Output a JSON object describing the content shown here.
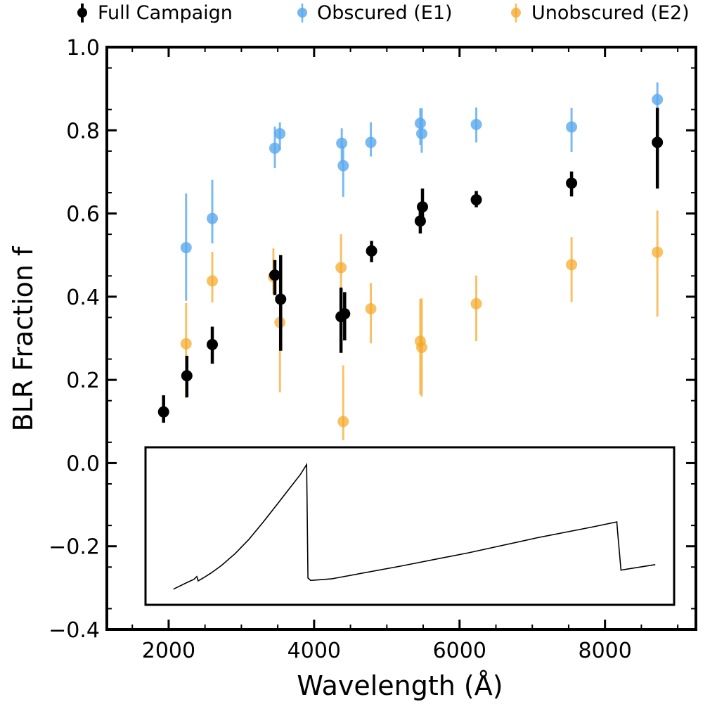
{
  "chart_data": {
    "type": "scatter",
    "xlabel": "Wavelength (Å)",
    "ylabel": "BLR Fraction f",
    "xlim": [
      1150,
      9250
    ],
    "ylim": [
      -0.4,
      1.0
    ],
    "x_ticks": [
      2000,
      4000,
      6000,
      8000
    ],
    "x_tick_labels": [
      "2000",
      "4000",
      "6000",
      "8000"
    ],
    "y_ticks": [
      -0.4,
      -0.2,
      0.0,
      0.2,
      0.4,
      0.6,
      0.8,
      1.0
    ],
    "y_tick_labels": [
      "−0.4",
      "−0.2",
      "0.0",
      "0.2",
      "0.4",
      "0.6",
      "0.8",
      "1.0"
    ],
    "legend": {
      "position": "top",
      "entries": [
        "Full Campaign",
        "Obscured (E1)",
        "Unobscured (E2)"
      ]
    },
    "series": [
      {
        "name": "Unobscured (E2)",
        "color": "#f5a623",
        "x": [
          2240,
          2600,
          3440,
          3530,
          4370,
          4400,
          4780,
          5460,
          5480,
          6230,
          7540,
          8720
        ],
        "y": [
          0.287,
          0.438,
          0.448,
          0.338,
          0.47,
          0.1,
          0.371,
          0.293,
          0.278,
          0.383,
          0.477,
          0.507
        ],
        "err_low": [
          0.131,
          0.052,
          0.042,
          0.168,
          0.08,
          0.045,
          0.083,
          0.128,
          0.118,
          0.09,
          0.09,
          0.155
        ],
        "err_high": [
          0.098,
          0.07,
          0.068,
          0.107,
          0.08,
          0.135,
          0.062,
          0.102,
          0.118,
          0.068,
          0.066,
          0.1
        ]
      },
      {
        "name": "Obscured (E1)",
        "color": "#5aa9ee",
        "x": [
          2240,
          2600,
          3460,
          3530,
          4380,
          4400,
          4780,
          5460,
          5480,
          6230,
          7540,
          8720
        ],
        "y": [
          0.518,
          0.588,
          0.757,
          0.792,
          0.769,
          0.715,
          0.771,
          0.817,
          0.792,
          0.814,
          0.808,
          0.874
        ],
        "err_low": [
          0.128,
          0.06,
          0.048,
          0.04,
          0.049,
          0.075,
          0.034,
          0.052,
          0.046,
          0.043,
          0.06,
          0.05
        ],
        "err_high": [
          0.13,
          0.093,
          0.052,
          0.027,
          0.036,
          0.048,
          0.048,
          0.036,
          0.061,
          0.041,
          0.046,
          0.041
        ]
      },
      {
        "name": "Full Campaign",
        "color": "#000000",
        "x": [
          1930,
          2250,
          2600,
          3460,
          3540,
          4370,
          4420,
          4790,
          5460,
          5490,
          6230,
          7540,
          8720
        ],
        "y": [
          0.123,
          0.21,
          0.285,
          0.452,
          0.394,
          0.352,
          0.359,
          0.51,
          0.582,
          0.616,
          0.633,
          0.673,
          0.771
        ],
        "err_low": [
          0.026,
          0.052,
          0.046,
          0.048,
          0.124,
          0.087,
          0.064,
          0.027,
          0.03,
          0.04,
          0.018,
          0.032,
          0.111
        ],
        "err_high": [
          0.04,
          0.048,
          0.043,
          0.036,
          0.106,
          0.07,
          0.052,
          0.024,
          0.035,
          0.044,
          0.021,
          0.028,
          0.083
        ]
      }
    ],
    "inset": {
      "description_free": true,
      "xlim": [
        1600,
        8800
      ],
      "ylim": [
        -0.315,
        0.03
      ],
      "line": {
        "color": "#000000",
        "x": [
          1700,
          1900,
          2000,
          2040,
          2060,
          2150,
          2250,
          2400,
          2600,
          2800,
          3000,
          3200,
          3400,
          3550,
          3640,
          3645,
          3660,
          3700,
          4000,
          5000,
          6000,
          7000,
          7800,
          8160,
          8170,
          8220,
          8250,
          8720
        ],
        "y": [
          -0.302,
          -0.285,
          -0.277,
          -0.27,
          -0.281,
          -0.272,
          -0.261,
          -0.242,
          -0.212,
          -0.176,
          -0.134,
          -0.09,
          -0.045,
          -0.012,
          0.013,
          -0.06,
          -0.274,
          -0.28,
          -0.276,
          -0.244,
          -0.21,
          -0.172,
          -0.145,
          -0.132,
          -0.155,
          -0.254,
          -0.253,
          -0.24
        ]
      }
    }
  }
}
